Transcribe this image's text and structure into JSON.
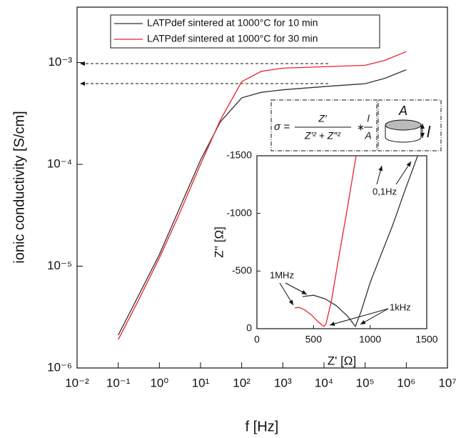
{
  "chart_data": [
    {
      "type": "line",
      "xlabel": "f [Hz]",
      "ylabel": "ionic conductivity [S/cm]",
      "log_x": true,
      "log_y": true,
      "xlim": [
        0.01,
        10000000
      ],
      "ylim": [
        1e-06,
        0.0035
      ],
      "xticks": [
        {
          "value": 0.01,
          "label": "10⁻²"
        },
        {
          "value": 0.1,
          "label": "10⁻¹"
        },
        {
          "value": 1,
          "label": "10⁰"
        },
        {
          "value": 10,
          "label": "10¹"
        },
        {
          "value": 100,
          "label": "10²"
        },
        {
          "value": 1000,
          "label": "10³"
        },
        {
          "value": 10000,
          "label": "10⁴"
        },
        {
          "value": 100000,
          "label": "10⁵"
        },
        {
          "value": 1000000,
          "label": "10⁶"
        },
        {
          "value": 10000000,
          "label": "10⁷"
        }
      ],
      "yticks": [
        {
          "value": 1e-06,
          "label": "10⁻⁶"
        },
        {
          "value": 1e-05,
          "label": "10⁻⁵"
        },
        {
          "value": 0.0001,
          "label": "10⁻⁴"
        },
        {
          "value": 0.001,
          "label": "10⁻³"
        }
      ],
      "x": [
        0.1,
        0.3,
        1,
        3,
        10,
        30,
        100,
        300,
        1000,
        10000,
        100000,
        300000,
        1000000
      ],
      "series": [
        {
          "name": "LATPdef sintered at 1000°C for 10 min",
          "color": "#333333",
          "values": [
            2.1e-06,
            5e-06,
            1.3e-05,
            3.6e-05,
            0.00011,
            0.00026,
            0.00045,
            0.00051,
            0.00054,
            0.00058,
            0.00062,
            0.0007,
            0.00085
          ]
        },
        {
          "name": "LATPdef sintered at 1000°C for 30 min",
          "color": "#e8232a",
          "values": [
            1.9e-06,
            4.5e-06,
            1.2e-05,
            3.2e-05,
            0.0001,
            0.00027,
            0.00065,
            0.00082,
            0.00088,
            0.00091,
            0.00094,
            0.00105,
            0.00128
          ]
        }
      ],
      "formula": {
        "lhs": "σ =",
        "num": "Z′",
        "den": "Z′² + Z″²",
        "times": "∗",
        "num2": "l",
        "den2": "A"
      },
      "sample_labels": {
        "area": "A",
        "length": "l"
      }
    },
    {
      "type": "line",
      "xlabel": "Z' [Ω]",
      "ylabel": "Z'' [Ω]",
      "xlim": [
        0,
        1500
      ],
      "ylim": [
        0,
        -1500
      ],
      "xticks": [
        0,
        500,
        1000,
        1500
      ],
      "yticks": [
        0,
        -500,
        -1000,
        -1500
      ],
      "series": [
        {
          "color": "#333333",
          "x": [
            403,
            500,
            600,
            700,
            800,
            870,
            920,
            1000,
            1100,
            1200,
            1300,
            1420
          ],
          "values": [
            -279,
            -290,
            -260,
            -200,
            -110,
            -20,
            -150,
            -400,
            -650,
            -900,
            -1180,
            -1500
          ]
        },
        {
          "color": "#e8232a",
          "x": [
            335,
            370,
            420,
            480,
            540,
            592,
            610,
            660,
            720,
            800,
            876
          ],
          "values": [
            -180,
            -185,
            -165,
            -120,
            -60,
            -19,
            -40,
            -250,
            -600,
            -1050,
            -1500
          ]
        }
      ],
      "annotations": [
        "1MHz",
        "1kHz",
        "0,1Hz"
      ]
    }
  ]
}
